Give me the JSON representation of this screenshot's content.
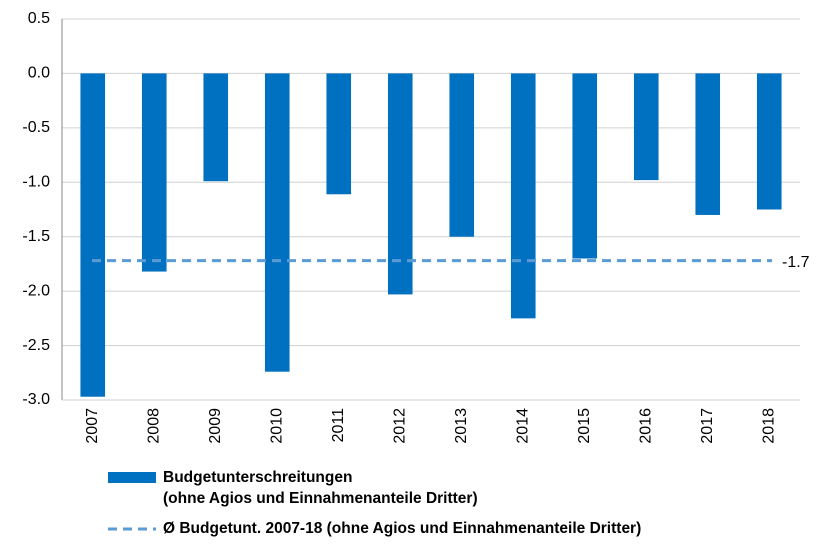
{
  "chart_data": {
    "type": "bar",
    "categories": [
      "2007",
      "2008",
      "2009",
      "2010",
      "2011",
      "2012",
      "2013",
      "2014",
      "2015",
      "2016",
      "2017",
      "2018"
    ],
    "series": [
      {
        "name": [
          "Budgetunterschreitungen",
          "(ohne Agios und Einnahmenanteile Dritter)"
        ],
        "color": "#0070c0",
        "values": [
          -2.97,
          -1.82,
          -0.99,
          -2.74,
          -1.11,
          -2.03,
          -1.5,
          -2.25,
          -1.7,
          -0.98,
          -1.3,
          -1.25
        ]
      }
    ],
    "average": {
      "name": "Ø Budgetunt. 2007-18 (ohne Agios und Einnahmenanteile Dritter)",
      "value": -1.72,
      "value_label": "-1.7",
      "color": "#5b9bd5"
    },
    "ylim": [
      -3,
      0.5
    ],
    "yticks": [
      0.5,
      {
        "value": 0,
        "label": "0.0"
      },
      -0.5,
      {
        "value": -1,
        "label": "-1.0"
      },
      -1.5,
      {
        "value": -2,
        "label": "-2.0"
      },
      -2.5,
      {
        "value": -3,
        "label": "-3.0"
      }
    ],
    "grid": true
  }
}
